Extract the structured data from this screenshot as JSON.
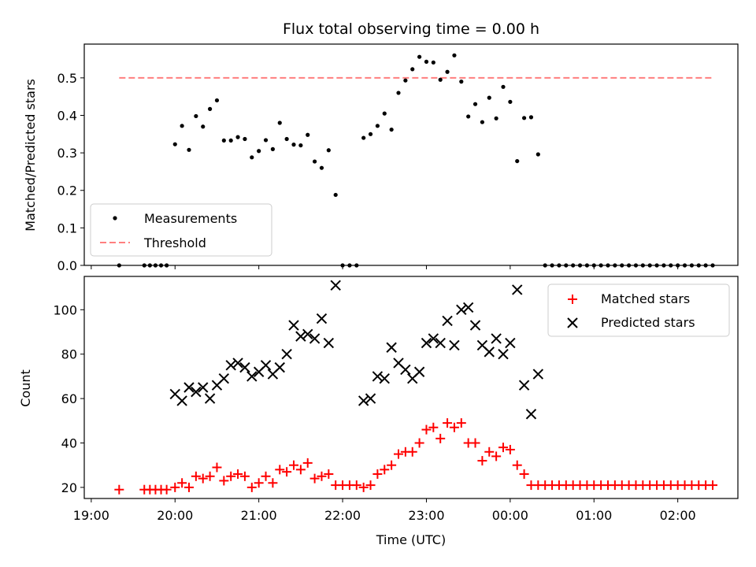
{
  "chart_data": [
    {
      "type": "scatter",
      "title": "Flux total observing time = 0.00 h",
      "xlabel": "",
      "ylabel": "Matched/Predicted stars",
      "ylim": [
        0,
        0.59
      ],
      "yticks": [
        "0.0",
        "0.1",
        "0.2",
        "0.3",
        "0.4",
        "0.5"
      ],
      "legend_position": "lower-left",
      "series": [
        {
          "name": "Measurements",
          "kind": "scatter",
          "marker": "dot",
          "color": "#000000",
          "points": [
            [
              "19:20",
              0.0
            ],
            [
              "19:38",
              0.0
            ],
            [
              "19:42",
              0.0
            ],
            [
              "19:46",
              0.0
            ],
            [
              "19:50",
              0.0
            ],
            [
              "19:54",
              0.0
            ],
            [
              "20:00",
              0.323
            ],
            [
              "20:05",
              0.372
            ],
            [
              "20:10",
              0.308
            ],
            [
              "20:15",
              0.398
            ],
            [
              "20:20",
              0.37
            ],
            [
              "20:25",
              0.417
            ],
            [
              "20:30",
              0.44
            ],
            [
              "20:35",
              0.333
            ],
            [
              "20:40",
              0.333
            ],
            [
              "20:45",
              0.342
            ],
            [
              "20:50",
              0.337
            ],
            [
              "20:55",
              0.288
            ],
            [
              "21:00",
              0.305
            ],
            [
              "21:05",
              0.334
            ],
            [
              "21:10",
              0.31
            ],
            [
              "21:15",
              0.38
            ],
            [
              "21:20",
              0.337
            ],
            [
              "21:25",
              0.322
            ],
            [
              "21:30",
              0.32
            ],
            [
              "21:35",
              0.348
            ],
            [
              "21:40",
              0.277
            ],
            [
              "21:45",
              0.26
            ],
            [
              "21:50",
              0.307
            ],
            [
              "21:55",
              0.188
            ],
            [
              "22:00",
              0.0
            ],
            [
              "22:05",
              0.0
            ],
            [
              "22:10",
              0.0
            ],
            [
              "22:15",
              0.34
            ],
            [
              "22:20",
              0.35
            ],
            [
              "22:25",
              0.372
            ],
            [
              "22:30",
              0.405
            ],
            [
              "22:35",
              0.362
            ],
            [
              "22:40",
              0.46
            ],
            [
              "22:45",
              0.493
            ],
            [
              "22:50",
              0.523
            ],
            [
              "22:55",
              0.556
            ],
            [
              "23:00",
              0.543
            ],
            [
              "23:05",
              0.541
            ],
            [
              "23:10",
              0.495
            ],
            [
              "23:15",
              0.516
            ],
            [
              "23:20",
              0.56
            ],
            [
              "23:25",
              0.49
            ],
            [
              "23:30",
              0.397
            ],
            [
              "23:35",
              0.43
            ],
            [
              "23:40",
              0.382
            ],
            [
              "23:45",
              0.447
            ],
            [
              "23:50",
              0.392
            ],
            [
              "23:55",
              0.476
            ],
            [
              "00:00",
              0.436
            ],
            [
              "00:05",
              0.278
            ],
            [
              "00:10",
              0.393
            ],
            [
              "00:15",
              0.395
            ],
            [
              "00:20",
              0.296
            ],
            [
              "00:25",
              0.0
            ],
            [
              "00:30",
              0.0
            ],
            [
              "00:35",
              0.0
            ],
            [
              "00:40",
              0.0
            ],
            [
              "00:45",
              0.0
            ],
            [
              "00:50",
              0.0
            ],
            [
              "00:55",
              0.0
            ],
            [
              "01:00",
              0.0
            ],
            [
              "01:05",
              0.0
            ],
            [
              "01:10",
              0.0
            ],
            [
              "01:15",
              0.0
            ],
            [
              "01:20",
              0.0
            ],
            [
              "01:25",
              0.0
            ],
            [
              "01:30",
              0.0
            ],
            [
              "01:35",
              0.0
            ],
            [
              "01:40",
              0.0
            ],
            [
              "01:45",
              0.0
            ],
            [
              "01:50",
              0.0
            ],
            [
              "01:55",
              0.0
            ],
            [
              "02:00",
              0.0
            ],
            [
              "02:05",
              0.0
            ],
            [
              "02:10",
              0.0
            ],
            [
              "02:15",
              0.0
            ],
            [
              "02:20",
              0.0
            ],
            [
              "02:25",
              0.0
            ]
          ]
        },
        {
          "name": "Threshold",
          "kind": "line",
          "style": "dashed",
          "color": "#ff7f7f",
          "points": [
            [
              "19:20",
              0.5
            ],
            [
              "02:25",
              0.5
            ]
          ]
        }
      ]
    },
    {
      "type": "scatter",
      "title": "",
      "xlabel": "Time (UTC)",
      "ylabel": "Count",
      "ylim": [
        15,
        115
      ],
      "yticks": [
        "20",
        "40",
        "60",
        "80",
        "100"
      ],
      "xticks": [
        "19:00",
        "20:00",
        "21:00",
        "22:00",
        "23:00",
        "00:00",
        "01:00",
        "02:00"
      ],
      "legend_position": "upper-right",
      "series": [
        {
          "name": "Matched stars",
          "marker": "plus",
          "color": "#ff0000",
          "points": [
            [
              "19:20",
              19
            ],
            [
              "19:38",
              19
            ],
            [
              "19:42",
              19
            ],
            [
              "19:46",
              19
            ],
            [
              "19:50",
              19
            ],
            [
              "19:54",
              19
            ],
            [
              "20:00",
              20
            ],
            [
              "20:05",
              22
            ],
            [
              "20:10",
              20
            ],
            [
              "20:15",
              25
            ],
            [
              "20:20",
              24
            ],
            [
              "20:25",
              25
            ],
            [
              "20:30",
              29
            ],
            [
              "20:35",
              23
            ],
            [
              "20:40",
              25
            ],
            [
              "20:45",
              26
            ],
            [
              "20:50",
              25
            ],
            [
              "20:55",
              20
            ],
            [
              "21:00",
              22
            ],
            [
              "21:05",
              25
            ],
            [
              "21:10",
              22
            ],
            [
              "21:15",
              28
            ],
            [
              "21:20",
              27
            ],
            [
              "21:25",
              30
            ],
            [
              "21:30",
              28
            ],
            [
              "21:35",
              31
            ],
            [
              "21:40",
              24
            ],
            [
              "21:45",
              25
            ],
            [
              "21:50",
              26
            ],
            [
              "21:55",
              21
            ],
            [
              "22:00",
              21
            ],
            [
              "22:05",
              21
            ],
            [
              "22:10",
              21
            ],
            [
              "22:15",
              20
            ],
            [
              "22:20",
              21
            ],
            [
              "22:25",
              26
            ],
            [
              "22:30",
              28
            ],
            [
              "22:35",
              30
            ],
            [
              "22:40",
              35
            ],
            [
              "22:45",
              36
            ],
            [
              "22:50",
              36
            ],
            [
              "22:55",
              40
            ],
            [
              "23:00",
              46
            ],
            [
              "23:05",
              47
            ],
            [
              "23:10",
              42
            ],
            [
              "23:15",
              49
            ],
            [
              "23:20",
              47
            ],
            [
              "23:25",
              49
            ],
            [
              "23:30",
              40
            ],
            [
              "23:35",
              40
            ],
            [
              "23:40",
              32
            ],
            [
              "23:45",
              36
            ],
            [
              "23:50",
              34
            ],
            [
              "23:55",
              38
            ],
            [
              "00:00",
              37
            ],
            [
              "00:05",
              30
            ],
            [
              "00:10",
              26
            ],
            [
              "00:15",
              21
            ],
            [
              "00:20",
              21
            ],
            [
              "00:25",
              21
            ],
            [
              "00:30",
              21
            ],
            [
              "00:35",
              21
            ],
            [
              "00:40",
              21
            ],
            [
              "00:45",
              21
            ],
            [
              "00:50",
              21
            ],
            [
              "00:55",
              21
            ],
            [
              "01:00",
              21
            ],
            [
              "01:05",
              21
            ],
            [
              "01:10",
              21
            ],
            [
              "01:15",
              21
            ],
            [
              "01:20",
              21
            ],
            [
              "01:25",
              21
            ],
            [
              "01:30",
              21
            ],
            [
              "01:35",
              21
            ],
            [
              "01:40",
              21
            ],
            [
              "01:45",
              21
            ],
            [
              "01:50",
              21
            ],
            [
              "01:55",
              21
            ],
            [
              "02:00",
              21
            ],
            [
              "02:05",
              21
            ],
            [
              "02:10",
              21
            ],
            [
              "02:15",
              21
            ],
            [
              "02:20",
              21
            ],
            [
              "02:25",
              21
            ]
          ]
        },
        {
          "name": "Predicted stars",
          "marker": "x",
          "color": "#000000",
          "points": [
            [
              "20:00",
              62
            ],
            [
              "20:05",
              59
            ],
            [
              "20:10",
              65
            ],
            [
              "20:15",
              63
            ],
            [
              "20:20",
              65
            ],
            [
              "20:25",
              60
            ],
            [
              "20:30",
              66
            ],
            [
              "20:35",
              69
            ],
            [
              "20:40",
              75
            ],
            [
              "20:45",
              76
            ],
            [
              "20:50",
              74
            ],
            [
              "20:55",
              70
            ],
            [
              "21:00",
              72
            ],
            [
              "21:05",
              75
            ],
            [
              "21:10",
              71
            ],
            [
              "21:15",
              74
            ],
            [
              "21:20",
              80
            ],
            [
              "21:25",
              93
            ],
            [
              "21:30",
              88
            ],
            [
              "21:35",
              89
            ],
            [
              "21:40",
              87
            ],
            [
              "21:45",
              96
            ],
            [
              "21:50",
              85
            ],
            [
              "21:55",
              111
            ],
            [
              "22:15",
              59
            ],
            [
              "22:20",
              60
            ],
            [
              "22:25",
              70
            ],
            [
              "22:30",
              69
            ],
            [
              "22:35",
              83
            ],
            [
              "22:40",
              76
            ],
            [
              "22:45",
              73
            ],
            [
              "22:50",
              69
            ],
            [
              "22:55",
              72
            ],
            [
              "23:00",
              85
            ],
            [
              "23:05",
              87
            ],
            [
              "23:10",
              85
            ],
            [
              "23:15",
              95
            ],
            [
              "23:20",
              84
            ],
            [
              "23:25",
              100
            ],
            [
              "23:30",
              101
            ],
            [
              "23:35",
              93
            ],
            [
              "23:40",
              84
            ],
            [
              "23:45",
              81
            ],
            [
              "23:50",
              87
            ],
            [
              "23:55",
              80
            ],
            [
              "00:00",
              85
            ],
            [
              "00:05",
              109
            ],
            [
              "00:10",
              66
            ],
            [
              "00:15",
              53
            ],
            [
              "00:20",
              71
            ]
          ]
        }
      ]
    }
  ]
}
